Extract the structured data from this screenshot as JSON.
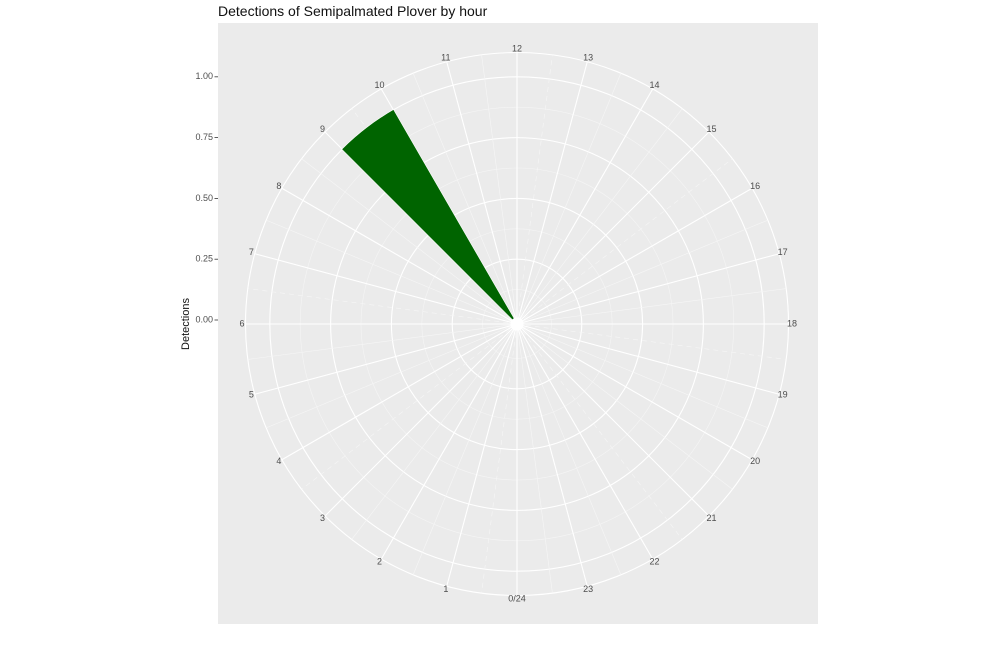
{
  "chart_data": {
    "type": "bar",
    "coord": "polar",
    "title": "Detections of Semipalmated Plover by hour",
    "xlabel": "",
    "ylabel": "Detections",
    "categories": [
      "0/24",
      "1",
      "2",
      "3",
      "4",
      "5",
      "6",
      "7",
      "8",
      "9",
      "10",
      "11",
      "12",
      "13",
      "14",
      "15",
      "16",
      "17",
      "18",
      "19",
      "20",
      "21",
      "22",
      "23"
    ],
    "values": [
      0,
      0,
      0,
      0,
      0,
      0,
      0,
      0,
      0,
      1,
      0,
      0,
      0,
      0,
      0,
      0,
      0,
      0,
      0,
      0,
      0,
      0,
      0,
      0
    ],
    "ylim": [
      0,
      1.1
    ],
    "yticks": [
      "0.00",
      "0.25",
      "0.50",
      "0.75",
      "1.00"
    ],
    "colors": {
      "bar": "#006400",
      "panel": "#ebebeb",
      "grid": "#ffffff"
    },
    "grid": true,
    "legend": "none"
  }
}
